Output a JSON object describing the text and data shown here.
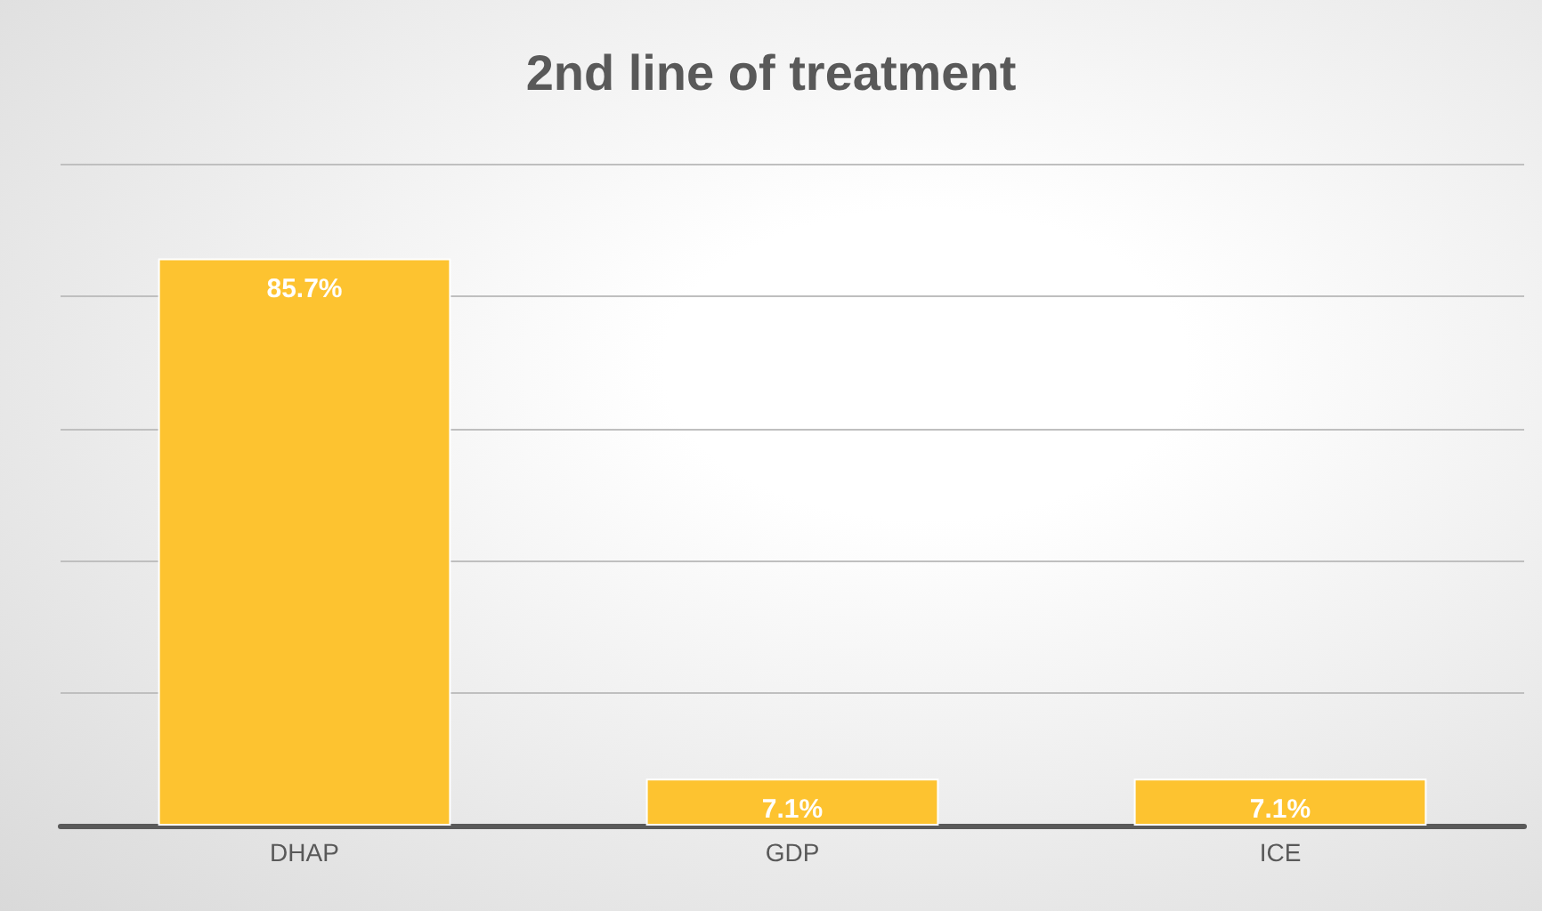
{
  "chart_data": {
    "type": "bar",
    "title": "2nd line of treatment",
    "categories": [
      "DHAP",
      "GDP",
      "ICE"
    ],
    "values": [
      85.7,
      7.1,
      7.1
    ],
    "value_labels": [
      "85.7%",
      "7.1%",
      "7.1%"
    ],
    "color": "#fdc330",
    "grid": "y"
  }
}
